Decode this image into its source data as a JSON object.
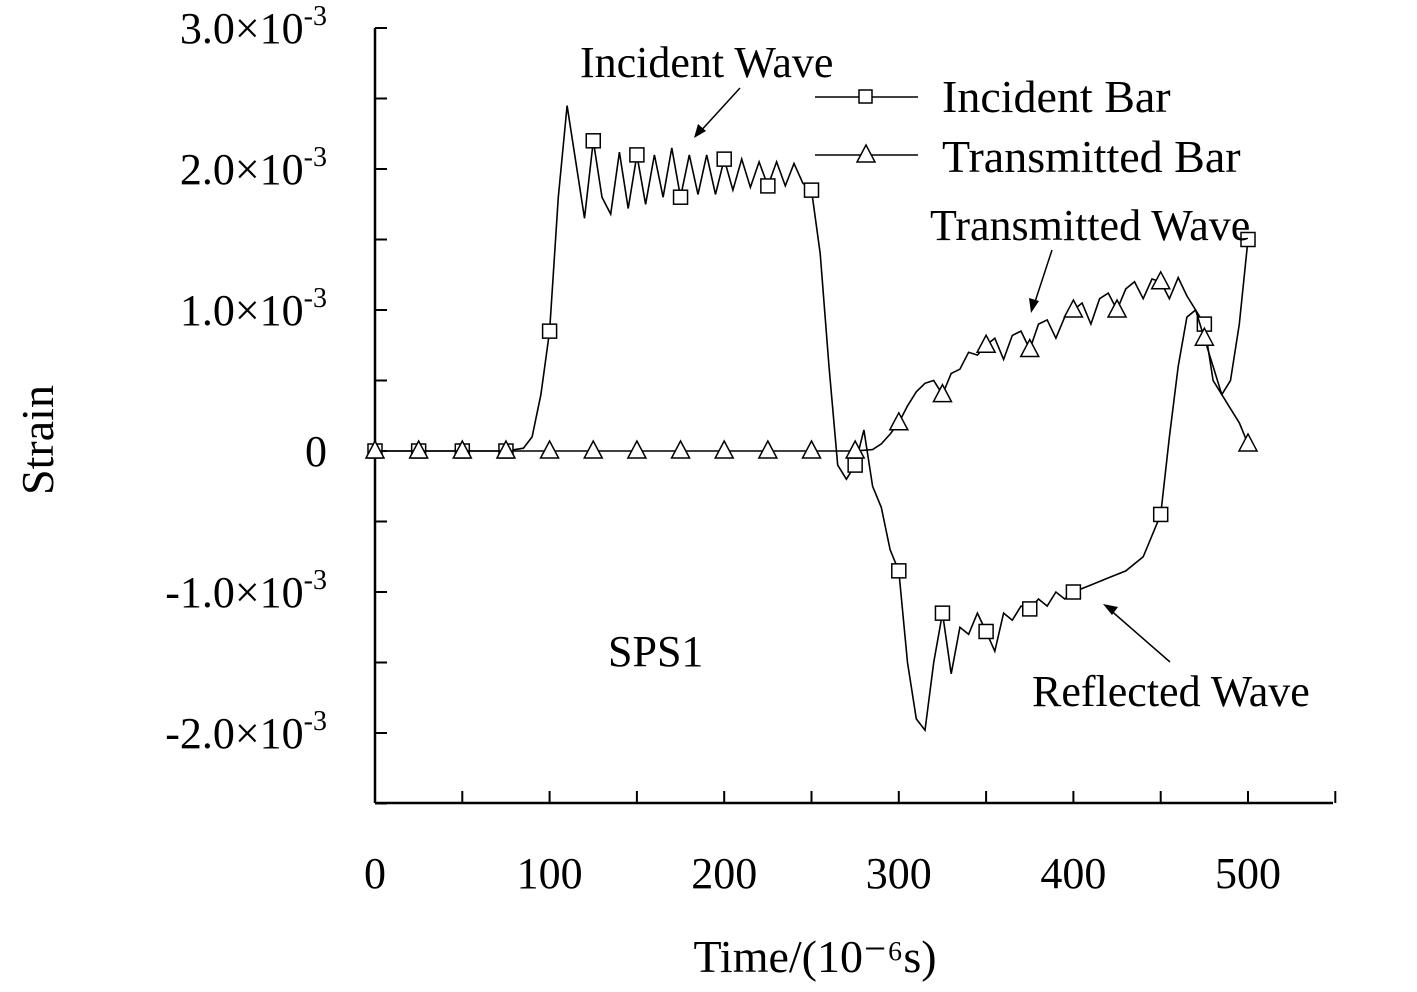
{
  "chart_data": {
    "type": "line",
    "title": "",
    "xlabel": "Time/(10⁻⁶s)",
    "ylabel": "Strain",
    "xlim": [
      0,
      550
    ],
    "ylim": [
      -0.0025,
      0.003
    ],
    "grid": false,
    "x_ticks": [
      {
        "value": 0,
        "label": "0"
      },
      {
        "value": 100,
        "label": "100"
      },
      {
        "value": 200,
        "label": "200"
      },
      {
        "value": 300,
        "label": "300"
      },
      {
        "value": 400,
        "label": "400"
      },
      {
        "value": 500,
        "label": "500"
      }
    ],
    "y_ticks": [
      {
        "value": 0.003,
        "mantissa": "3.0×10",
        "exponent": "-3"
      },
      {
        "value": 0.002,
        "mantissa": "2.0×10",
        "exponent": "-3"
      },
      {
        "value": 0.001,
        "mantissa": "1.0×10",
        "exponent": "-3"
      },
      {
        "value": 0,
        "mantissa": "0",
        "exponent": ""
      },
      {
        "value": -0.001,
        "mantissa": "-1.0×10",
        "exponent": "-3"
      },
      {
        "value": -0.002,
        "mantissa": "-2.0×10",
        "exponent": "-3"
      }
    ],
    "legend_position": "top-right",
    "series": [
      {
        "name": "Incident Bar",
        "marker": "square",
        "x": [
          0,
          25,
          50,
          75,
          85,
          90,
          95,
          100,
          105,
          110,
          115,
          120,
          125,
          130,
          135,
          140,
          145,
          150,
          155,
          160,
          165,
          170,
          175,
          180,
          185,
          190,
          195,
          200,
          205,
          210,
          215,
          220,
          225,
          230,
          235,
          240,
          245,
          250,
          255,
          260,
          265,
          270,
          275,
          280,
          285,
          290,
          295,
          300,
          305,
          310,
          315,
          320,
          325,
          330,
          335,
          340,
          345,
          350,
          355,
          360,
          365,
          370,
          375,
          380,
          385,
          390,
          395,
          400,
          410,
          420,
          430,
          440,
          450,
          455,
          460,
          465,
          470,
          475,
          480,
          485,
          490,
          495,
          500
        ],
        "y": [
          0,
          0,
          0,
          0,
          2e-05,
          0.0001,
          0.0004,
          0.00085,
          0.0018,
          0.00245,
          0.00205,
          0.00165,
          0.0022,
          0.0018,
          0.00168,
          0.00212,
          0.00172,
          0.0021,
          0.00175,
          0.0021,
          0.0018,
          0.00215,
          0.0018,
          0.0021,
          0.00182,
          0.0021,
          0.00182,
          0.00207,
          0.00185,
          0.00207,
          0.00187,
          0.00205,
          0.00188,
          0.00205,
          0.00188,
          0.00204,
          0.0019,
          0.00185,
          0.0014,
          0.0006,
          -0.0001,
          -0.0002,
          -0.0001,
          0.00015,
          -0.00025,
          -0.0004,
          -0.0007,
          -0.00085,
          -0.0015,
          -0.0019,
          -0.00198,
          -0.0015,
          -0.00115,
          -0.00158,
          -0.00125,
          -0.0013,
          -0.00115,
          -0.00128,
          -0.00142,
          -0.00115,
          -0.0012,
          -0.0011,
          -0.00112,
          -0.00105,
          -0.0011,
          -0.001,
          -0.00105,
          -0.001,
          -0.00095,
          -0.0009,
          -0.00085,
          -0.00075,
          -0.00045,
          0.0001,
          0.0006,
          0.00095,
          0.001,
          0.0009,
          0.0005,
          0.0004,
          0.0005,
          0.0009,
          0.0015
        ]
      },
      {
        "name": "Transmitted Bar",
        "marker": "triangle",
        "x": [
          0,
          25,
          50,
          75,
          100,
          125,
          150,
          175,
          200,
          225,
          250,
          275,
          285,
          290,
          295,
          300,
          305,
          310,
          315,
          320,
          325,
          330,
          335,
          340,
          345,
          350,
          355,
          360,
          365,
          370,
          375,
          380,
          385,
          390,
          395,
          400,
          405,
          410,
          415,
          420,
          425,
          430,
          435,
          440,
          445,
          450,
          455,
          460,
          465,
          470,
          475,
          480,
          485,
          490,
          495,
          500
        ],
        "y": [
          0,
          0,
          0,
          0,
          0,
          0,
          0,
          0,
          0,
          0,
          0,
          0,
          1e-05,
          5e-05,
          0.00012,
          0.0002,
          0.00032,
          0.00042,
          0.00048,
          0.0005,
          0.0004,
          0.00055,
          0.00058,
          0.0007,
          0.00068,
          0.00075,
          0.0008,
          0.00065,
          0.00082,
          0.00085,
          0.00072,
          0.0009,
          0.00093,
          0.0008,
          0.00095,
          0.001,
          0.00105,
          0.0009,
          0.00108,
          0.00112,
          0.001,
          0.00115,
          0.0012,
          0.00108,
          0.00122,
          0.0012,
          0.00108,
          0.00123,
          0.0011,
          0.001,
          0.0008,
          0.0006,
          0.0004,
          0.0003,
          0.0002,
          5e-05
        ]
      }
    ],
    "annotations": [
      {
        "text": "Incident Wave",
        "target_x": 185,
        "target_y": 0.00222
      },
      {
        "text": "Transmitted Wave",
        "target_x": 378,
        "target_y": 0.001
      },
      {
        "text": "Reflected Wave",
        "target_x": 418,
        "target_y": -0.001
      },
      {
        "text": "SPS1"
      }
    ]
  }
}
